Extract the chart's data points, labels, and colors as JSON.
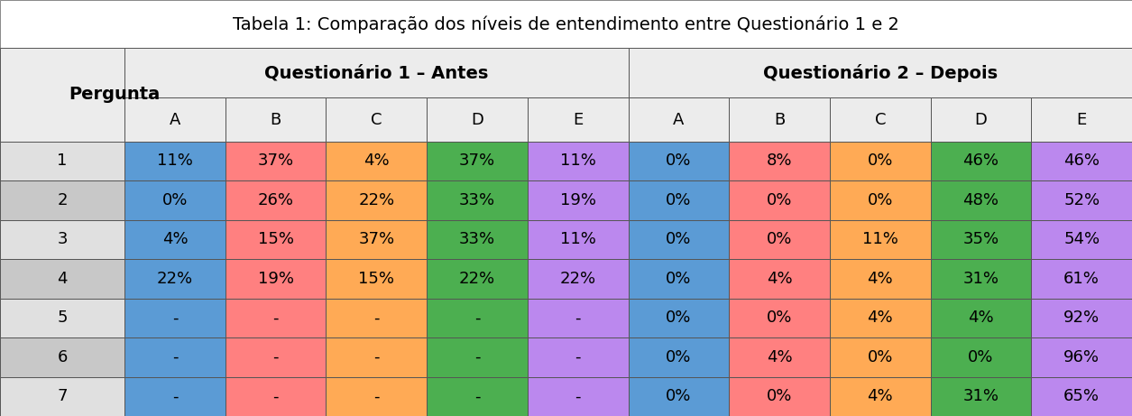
{
  "title": "Tabela 1: Comparação dos níveis de entendimento entre Questionário 1 e 2",
  "col_header_main": [
    "Questionário 1 – Antes",
    "Questionário 2 – Depois"
  ],
  "col_header_sub": [
    "A",
    "B",
    "C",
    "D",
    "E",
    "A",
    "B",
    "C",
    "D",
    "E"
  ],
  "row_header": "Pergunta",
  "rows": [
    "1",
    "2",
    "3",
    "4",
    "5",
    "6",
    "7"
  ],
  "data": [
    [
      "11%",
      "37%",
      "4%",
      "37%",
      "11%",
      "0%",
      "8%",
      "0%",
      "46%",
      "46%"
    ],
    [
      "0%",
      "26%",
      "22%",
      "33%",
      "19%",
      "0%",
      "0%",
      "0%",
      "48%",
      "52%"
    ],
    [
      "4%",
      "15%",
      "37%",
      "33%",
      "11%",
      "0%",
      "0%",
      "11%",
      "35%",
      "54%"
    ],
    [
      "22%",
      "19%",
      "15%",
      "22%",
      "22%",
      "0%",
      "4%",
      "4%",
      "31%",
      "61%"
    ],
    [
      "-",
      "-",
      "-",
      "-",
      "-",
      "0%",
      "0%",
      "4%",
      "4%",
      "92%"
    ],
    [
      "-",
      "-",
      "-",
      "-",
      "-",
      "0%",
      "4%",
      "0%",
      "0%",
      "96%"
    ],
    [
      "-",
      "-",
      "-",
      "-",
      "-",
      "0%",
      "0%",
      "4%",
      "31%",
      "65%"
    ]
  ],
  "col_colors": [
    "#5B9BD5",
    "#FF8080",
    "#FFAA55",
    "#4CAF50",
    "#BB88EE",
    "#5B9BD5",
    "#FF8080",
    "#FFAA55",
    "#4CAF50",
    "#BB88EE"
  ],
  "pergunta_bg_odd": "#E0E0E0",
  "pergunta_bg_even": "#C8C8C8",
  "header_bg": "#ECECEC",
  "title_bg": "#FFFFFF",
  "title_fontsize": 14,
  "header_main_fontsize": 14,
  "header_sub_fontsize": 13,
  "cell_fontsize": 13,
  "pergunta_fontsize": 14
}
